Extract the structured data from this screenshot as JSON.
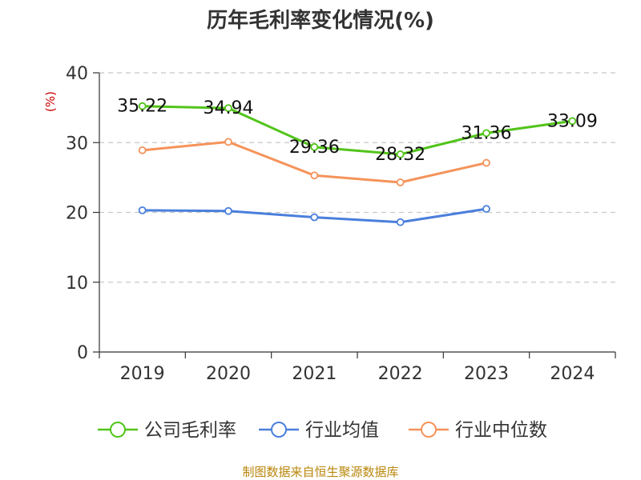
{
  "chart_data": {
    "type": "line",
    "title": "历年毛利率变化情况(%)",
    "ylabel": "(%)",
    "xlabel": "",
    "categories": [
      "2019",
      "2020",
      "2021",
      "2022",
      "2023",
      "2024"
    ],
    "ylim": [
      0,
      40
    ],
    "yticks": [
      0,
      10,
      20,
      30,
      40
    ],
    "grid": true,
    "legend_position": "bottom",
    "series": [
      {
        "name": "公司毛利率",
        "color": "#52c41a",
        "values": [
          35.22,
          34.94,
          29.36,
          28.32,
          31.36,
          33.09
        ],
        "show_labels": true
      },
      {
        "name": "行业均值",
        "color": "#4a7fdc",
        "values": [
          20.3,
          20.2,
          19.3,
          18.6,
          20.5,
          null
        ],
        "show_labels": false
      },
      {
        "name": "行业中位数",
        "color": "#f5935a",
        "values": [
          28.9,
          30.1,
          25.3,
          24.3,
          27.1,
          null
        ],
        "show_labels": false
      }
    ],
    "source": "制图数据来自恒生聚源数据库"
  }
}
